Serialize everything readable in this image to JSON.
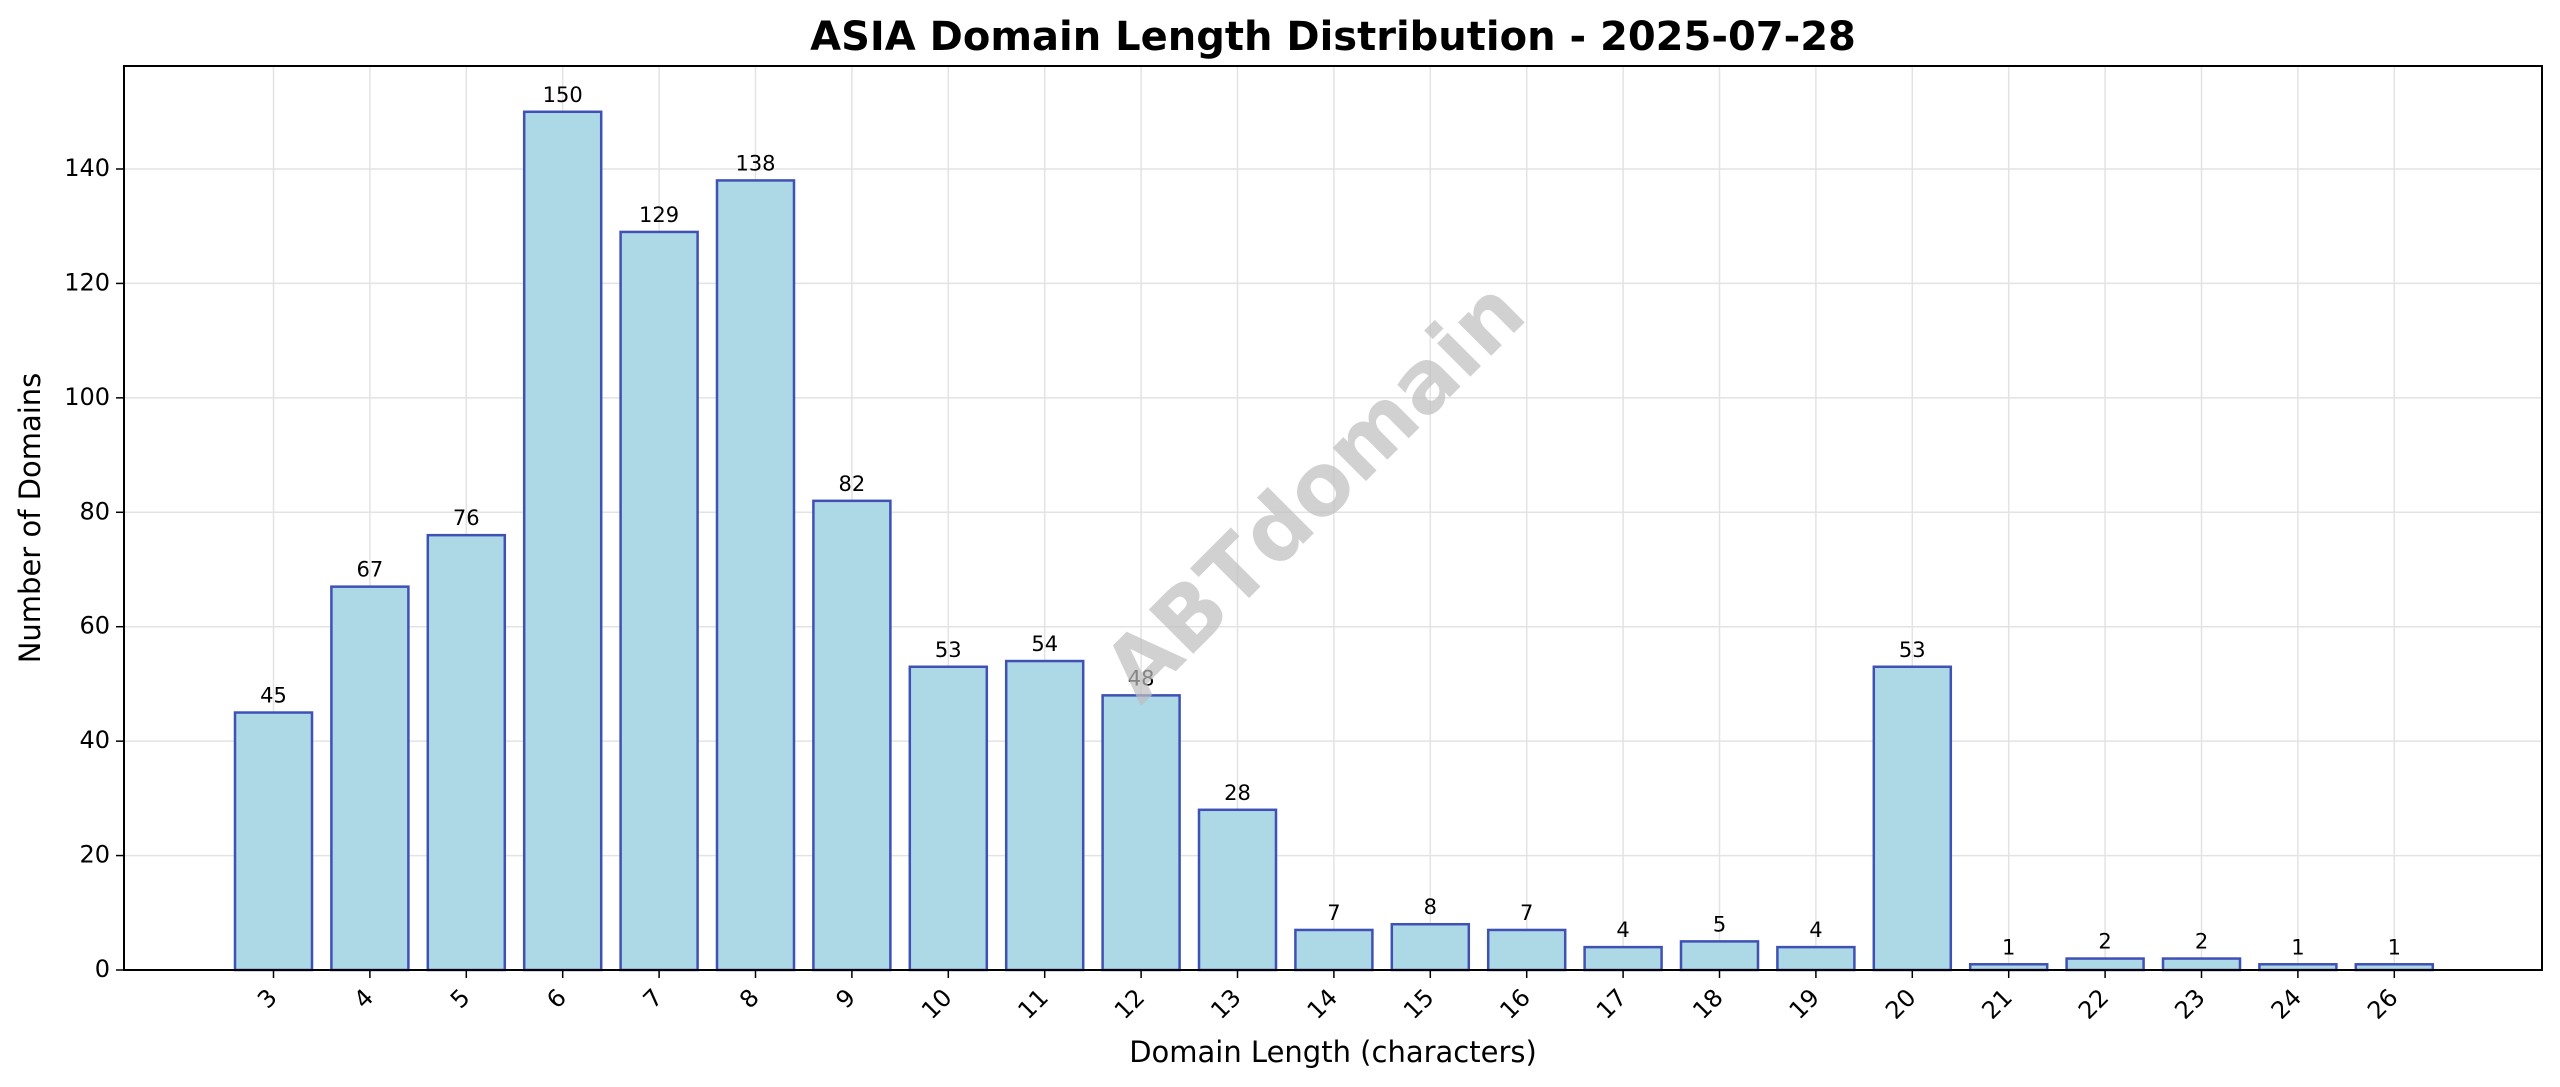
{
  "chart_data": {
    "type": "bar",
    "title": "ASIA Domain Length Distribution - 2025-07-28",
    "xlabel": "Domain Length (characters)",
    "ylabel": "Number of Domains",
    "categories": [
      "3",
      "4",
      "5",
      "6",
      "7",
      "8",
      "9",
      "10",
      "11",
      "12",
      "13",
      "14",
      "15",
      "16",
      "17",
      "18",
      "19",
      "20",
      "21",
      "22",
      "23",
      "24",
      "26"
    ],
    "values": [
      45,
      67,
      76,
      150,
      129,
      138,
      82,
      53,
      54,
      48,
      28,
      7,
      8,
      7,
      4,
      5,
      4,
      53,
      1,
      2,
      2,
      1,
      1
    ],
    "ylim": [
      0,
      158
    ],
    "yticks": [
      0,
      20,
      40,
      60,
      80,
      100,
      120,
      140
    ],
    "grid": true,
    "bar_fill": "#add8e6",
    "bar_edge": "#3f51b5",
    "watermark": "ABTdomain"
  }
}
